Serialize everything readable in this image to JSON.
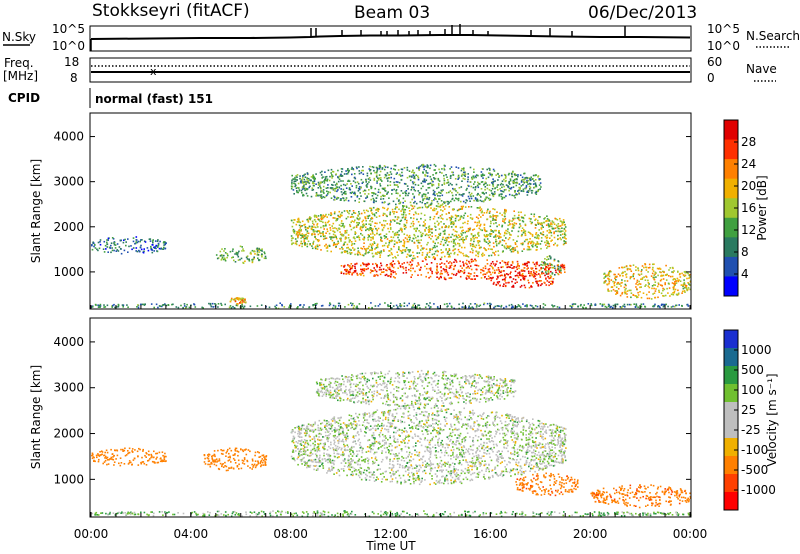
{
  "header": {
    "station": "Stokkseyri (fitACF)",
    "beam": "Beam 03",
    "date": "06/Dec/2013"
  },
  "side_labels": {
    "nsky": "N.Sky",
    "freq": "Freq.",
    "mhz": "[MHz]",
    "cpid": "CPID",
    "nsearch": "N.Search",
    "nave": "Nave"
  },
  "noise_panel": {
    "left_ticks": [
      "10^5",
      "10^0"
    ],
    "right_ticks": [
      "10^5",
      "10^0"
    ]
  },
  "freq_panel": {
    "left_ticks": [
      "18",
      "8"
    ],
    "right_ticks": [
      "60",
      "0"
    ]
  },
  "cpid_text": "normal (fast) 151",
  "power_colorbar": {
    "label": "Power [dB]",
    "ticks": [
      "28",
      "24",
      "20",
      "16",
      "12",
      "8",
      "4"
    ],
    "colors": [
      "#e00000",
      "#ff3000",
      "#ff8000",
      "#f0b000",
      "#a0c830",
      "#40a040",
      "#2a7a60",
      "#2050b0",
      "#0000ff"
    ]
  },
  "velocity_colorbar": {
    "label": "Velocity [m s⁻¹]",
    "ticks": [
      "1000",
      "500",
      "100",
      "25",
      "-25",
      "-100",
      "-500",
      "-1000"
    ],
    "colors": [
      "#1a2fd0",
      "#1a6a90",
      "#2a9a40",
      "#70c030",
      "#bfbfbf",
      "#bfbfbf",
      "#f0b000",
      "#ff8000",
      "#ff4000",
      "#ff0000"
    ]
  },
  "chart_data": [
    {
      "type": "heatmap",
      "title": "Stokkseyri (fitACF) Beam 03 06/Dec/2013",
      "quantity": "Power",
      "colorbar_label": "Power [dB]",
      "colorbar_ticks": [
        28,
        24,
        20,
        16,
        12,
        8,
        4
      ],
      "ylabel": "Slant Range [km]",
      "yticks": [
        1000,
        2000,
        3000,
        4000
      ],
      "ylim": [
        200,
        4500
      ],
      "xlim_hours": [
        0,
        24
      ],
      "regions": [
        {
          "t": [
            0,
            24
          ],
          "r": [
            200,
            330
          ],
          "value": 8
        },
        {
          "t": [
            0,
            3
          ],
          "r": [
            1400,
            1800
          ],
          "value": 6
        },
        {
          "t": [
            5,
            7
          ],
          "r": [
            1200,
            1600
          ],
          "value": 12
        },
        {
          "t": [
            5.5,
            6.2
          ],
          "r": [
            300,
            450
          ],
          "value": 20
        },
        {
          "t": [
            8,
            19
          ],
          "r": [
            1300,
            2500
          ],
          "value": 16
        },
        {
          "t": [
            10,
            19
          ],
          "r": [
            850,
            1300
          ],
          "value": 26
        },
        {
          "t": [
            16,
            18.5
          ],
          "r": [
            650,
            1000
          ],
          "value": 28
        },
        {
          "t": [
            18,
            18.8
          ],
          "r": [
            900,
            1400
          ],
          "value": 12
        },
        {
          "t": [
            20.5,
            24
          ],
          "r": [
            400,
            1200
          ],
          "value": 18
        },
        {
          "t": [
            8,
            18
          ],
          "r": [
            2500,
            3400
          ],
          "value": 10
        }
      ]
    },
    {
      "type": "heatmap",
      "quantity": "Velocity",
      "colorbar_label": "Velocity [m s⁻¹]",
      "colorbar_ticks": [
        1000,
        500,
        100,
        25,
        -25,
        -100,
        -500,
        -1000
      ],
      "ylabel": "Slant Range [km]",
      "yticks": [
        1000,
        2000,
        3000,
        4000
      ],
      "ylim": [
        200,
        4500
      ],
      "xlabel": "Time UT",
      "xticks": [
        "00:00",
        "04:00",
        "08:00",
        "12:00",
        "16:00",
        "20:00",
        "00:00"
      ],
      "xlim_hours": [
        0,
        24
      ],
      "regions": [
        {
          "t": [
            0,
            24
          ],
          "r": [
            200,
            330
          ],
          "value": 50
        },
        {
          "t": [
            0,
            3
          ],
          "r": [
            1300,
            1700
          ],
          "value": -300
        },
        {
          "t": [
            4.5,
            7
          ],
          "r": [
            1200,
            1700
          ],
          "value": -300
        },
        {
          "t": [
            8,
            19
          ],
          "r": [
            900,
            2600
          ],
          "value": 0
        },
        {
          "t": [
            9,
            17
          ],
          "r": [
            2600,
            3400
          ],
          "value": 0
        },
        {
          "t": [
            17,
            19.5
          ],
          "r": [
            650,
            1150
          ],
          "value": -400
        },
        {
          "t": [
            20,
            24
          ],
          "r": [
            400,
            900
          ],
          "value": -400
        }
      ]
    }
  ]
}
